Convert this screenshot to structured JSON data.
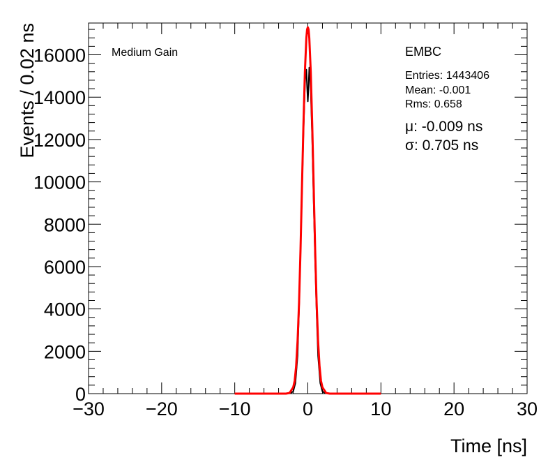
{
  "chart_data": {
    "type": "line",
    "title": "",
    "xlabel": "Time [ns]",
    "ylabel": "Events / 0.02 ns",
    "xlim": [
      -30,
      30
    ],
    "ylim": [
      0,
      17500
    ],
    "x_ticks": [
      -30,
      -20,
      -10,
      0,
      10,
      20,
      30
    ],
    "x_tick_labels": [
      "−30",
      "−20",
      "−10",
      "0",
      "10",
      "20",
      "30"
    ],
    "y_ticks": [
      0,
      2000,
      4000,
      6000,
      8000,
      10000,
      12000,
      14000,
      16000
    ],
    "y_tick_labels": [
      "0",
      "2000",
      "4000",
      "6000",
      "8000",
      "10000",
      "12000",
      "14000",
      "16000"
    ],
    "grid": false,
    "annotations": {
      "gain": "Medium Gain",
      "region": "EMBC",
      "entries": "Entries: 1443406",
      "mean": "Mean: -0.001",
      "rms": "Rms: 0.658",
      "mu": "μ: -0.009 ns",
      "sigma": "σ: 0.705 ns"
    },
    "series": [
      {
        "color": "#000000",
        "x": [
          -2.5,
          -2.0,
          -1.7,
          -1.4,
          -1.2,
          -1.0,
          -0.8,
          -0.6,
          -0.4,
          -0.3,
          -0.2,
          -0.1,
          0.0,
          0.1,
          0.2,
          0.3,
          0.4,
          0.6,
          0.8,
          1.0,
          1.2,
          1.4,
          1.7,
          2.0,
          2.5
        ],
        "y": [
          0,
          100,
          500,
          1800,
          4000,
          6700,
          9500,
          12300,
          14500,
          15200,
          15300,
          14500,
          13800,
          14500,
          15400,
          15000,
          14300,
          12000,
          9000,
          6300,
          3800,
          1800,
          500,
          100,
          0
        ]
      },
      {
        "color": "#ff0000",
        "x": [
          -10,
          -3.0,
          -2.5,
          -2.0,
          -1.8,
          -1.6,
          -1.4,
          -1.2,
          -1.0,
          -0.8,
          -0.6,
          -0.4,
          -0.2,
          -0.1,
          0.0,
          0.1,
          0.2,
          0.4,
          0.6,
          0.8,
          1.0,
          1.2,
          1.4,
          1.6,
          1.8,
          2.0,
          2.5,
          3.0,
          10
        ],
        "y": [
          0,
          0,
          30,
          300,
          600,
          1300,
          2500,
          4300,
          6800,
          9800,
          12700,
          15200,
          16800,
          17200,
          17300,
          17200,
          16800,
          15200,
          12700,
          9800,
          6800,
          4300,
          2500,
          1300,
          600,
          300,
          30,
          0,
          0
        ]
      }
    ]
  }
}
